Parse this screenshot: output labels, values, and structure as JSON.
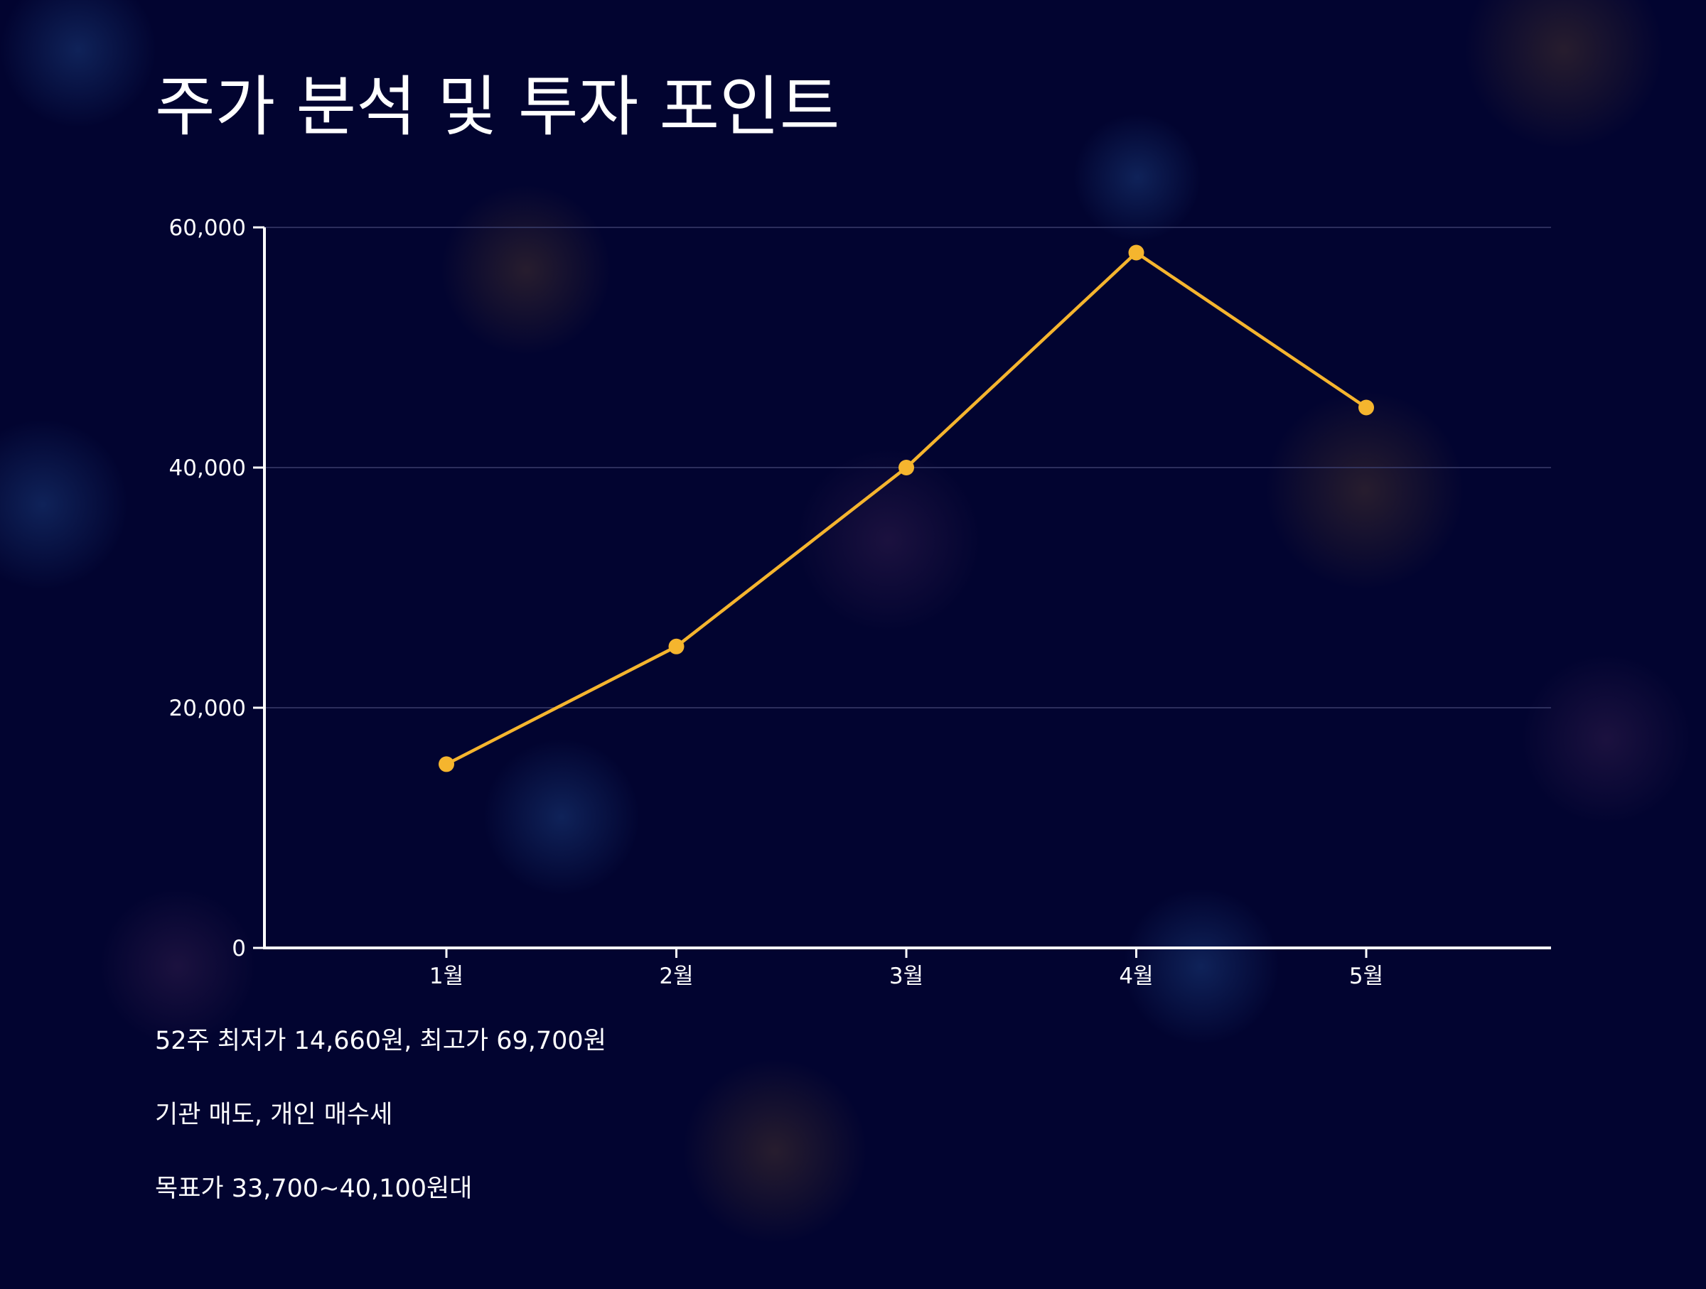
{
  "title": "주가 분석 및 투자 포인트",
  "colors": {
    "background": "#020430",
    "line": "#F5B52E",
    "axis": "#FFFFFF",
    "grid": "#3A3D6B"
  },
  "chart_data": {
    "type": "line",
    "categories": [
      "1월",
      "2월",
      "3월",
      "4월",
      "5월"
    ],
    "series": [
      {
        "values": [
          15300,
          25100,
          40000,
          57900,
          45000
        ]
      }
    ],
    "yticks": [
      "0",
      "20,000",
      "40,000",
      "60,000"
    ],
    "ylim": [
      0,
      60000
    ],
    "grid": true,
    "title": "",
    "xlabel": "",
    "ylabel": ""
  },
  "notes": [
    "52주 최저가 14,660원, 최고가 69,700원",
    "기관 매도, 개인 매수세",
    "목표가 33,700~40,100원대"
  ]
}
